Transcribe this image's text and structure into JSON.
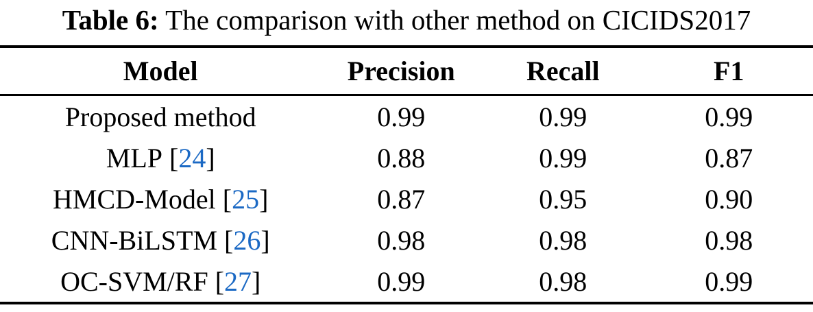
{
  "caption": {
    "label": "Table 6:",
    "text": " The comparison with other method on CICIDS2017"
  },
  "table": {
    "headers": {
      "model": "Model",
      "precision": "Precision",
      "recall": "Recall",
      "f1": "F1"
    },
    "rows": [
      {
        "model": "Proposed method",
        "precision": "0.99",
        "recall": "0.99",
        "f1": "0.99"
      },
      {
        "model": "MLP",
        "ref": "24",
        "precision": "0.88",
        "recall": "0.99",
        "f1": "0.87"
      },
      {
        "model": "HMCD-Model",
        "ref": "25",
        "precision": "0.87",
        "recall": "0.95",
        "f1": "0.90"
      },
      {
        "model": "CNN-BiLSTM",
        "ref": "26",
        "precision": "0.98",
        "recall": "0.98",
        "f1": "0.98"
      },
      {
        "model": "OC-SVM/RF",
        "ref": "27",
        "precision": "0.99",
        "recall": "0.98",
        "f1": "0.99"
      }
    ],
    "citation_brackets": {
      "open": "[",
      "close": "]"
    }
  },
  "colors": {
    "citation_blue": "#1b69c4",
    "text": "#000000",
    "rules": "#000000",
    "background": "#ffffff"
  }
}
